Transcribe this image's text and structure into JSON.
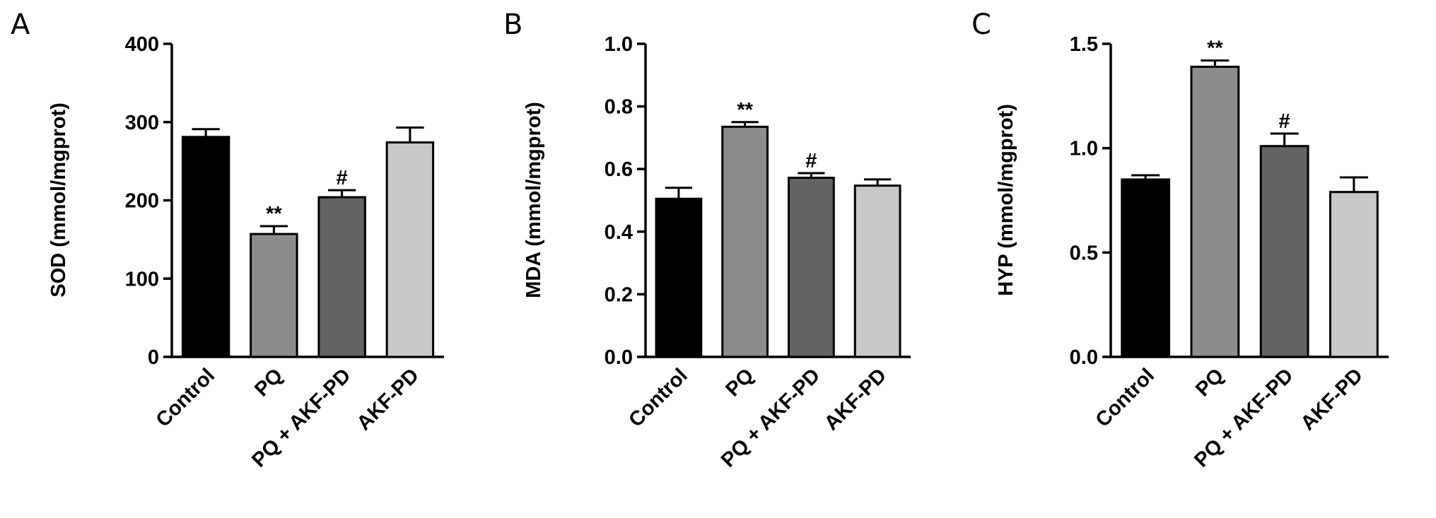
{
  "chart_data": [
    {
      "type": "bar",
      "panel": "A",
      "ylabel": "SOD (mmol/mgprot)",
      "categories": [
        "Control",
        "PQ",
        "PQ + AKF-PD",
        "AKF-PD"
      ],
      "values": [
        281,
        157,
        204,
        274
      ],
      "errors": [
        10,
        10,
        9,
        19
      ],
      "annotations": [
        "",
        "**",
        "#",
        ""
      ],
      "ylim": [
        0,
        400
      ],
      "yticks": [
        "0",
        "100",
        "200",
        "300",
        "400"
      ],
      "bar_colors": [
        "#000000",
        "#8c8c8c",
        "#636363",
        "#c8c8c8"
      ]
    },
    {
      "type": "bar",
      "panel": "B",
      "ylabel": "MDA (mmol/mgprot)",
      "categories": [
        "Control",
        "PQ",
        "PQ + AKF-PD",
        "AKF-PD"
      ],
      "values": [
        0.505,
        0.735,
        0.572,
        0.547
      ],
      "errors": [
        0.035,
        0.015,
        0.015,
        0.02
      ],
      "annotations": [
        "",
        "**",
        "#",
        ""
      ],
      "ylim": [
        0,
        1.0
      ],
      "yticks": [
        "0.0",
        "0.2",
        "0.4",
        "0.6",
        "0.8",
        "1.0"
      ],
      "bar_colors": [
        "#000000",
        "#8c8c8c",
        "#636363",
        "#c8c8c8"
      ]
    },
    {
      "type": "bar",
      "panel": "C",
      "ylabel": "HYP (mmol/mgprot)",
      "categories": [
        "Control",
        "PQ",
        "PQ + AKF-PD",
        "AKF-PD"
      ],
      "values": [
        0.85,
        1.39,
        1.01,
        0.79
      ],
      "errors": [
        0.02,
        0.03,
        0.06,
        0.07
      ],
      "annotations": [
        "",
        "**",
        "#",
        ""
      ],
      "ylim": [
        0,
        1.5
      ],
      "yticks": [
        "0.0",
        "0.5",
        "1.0",
        "1.5"
      ],
      "bar_colors": [
        "#000000",
        "#8c8c8c",
        "#636363",
        "#c8c8c8"
      ]
    }
  ]
}
